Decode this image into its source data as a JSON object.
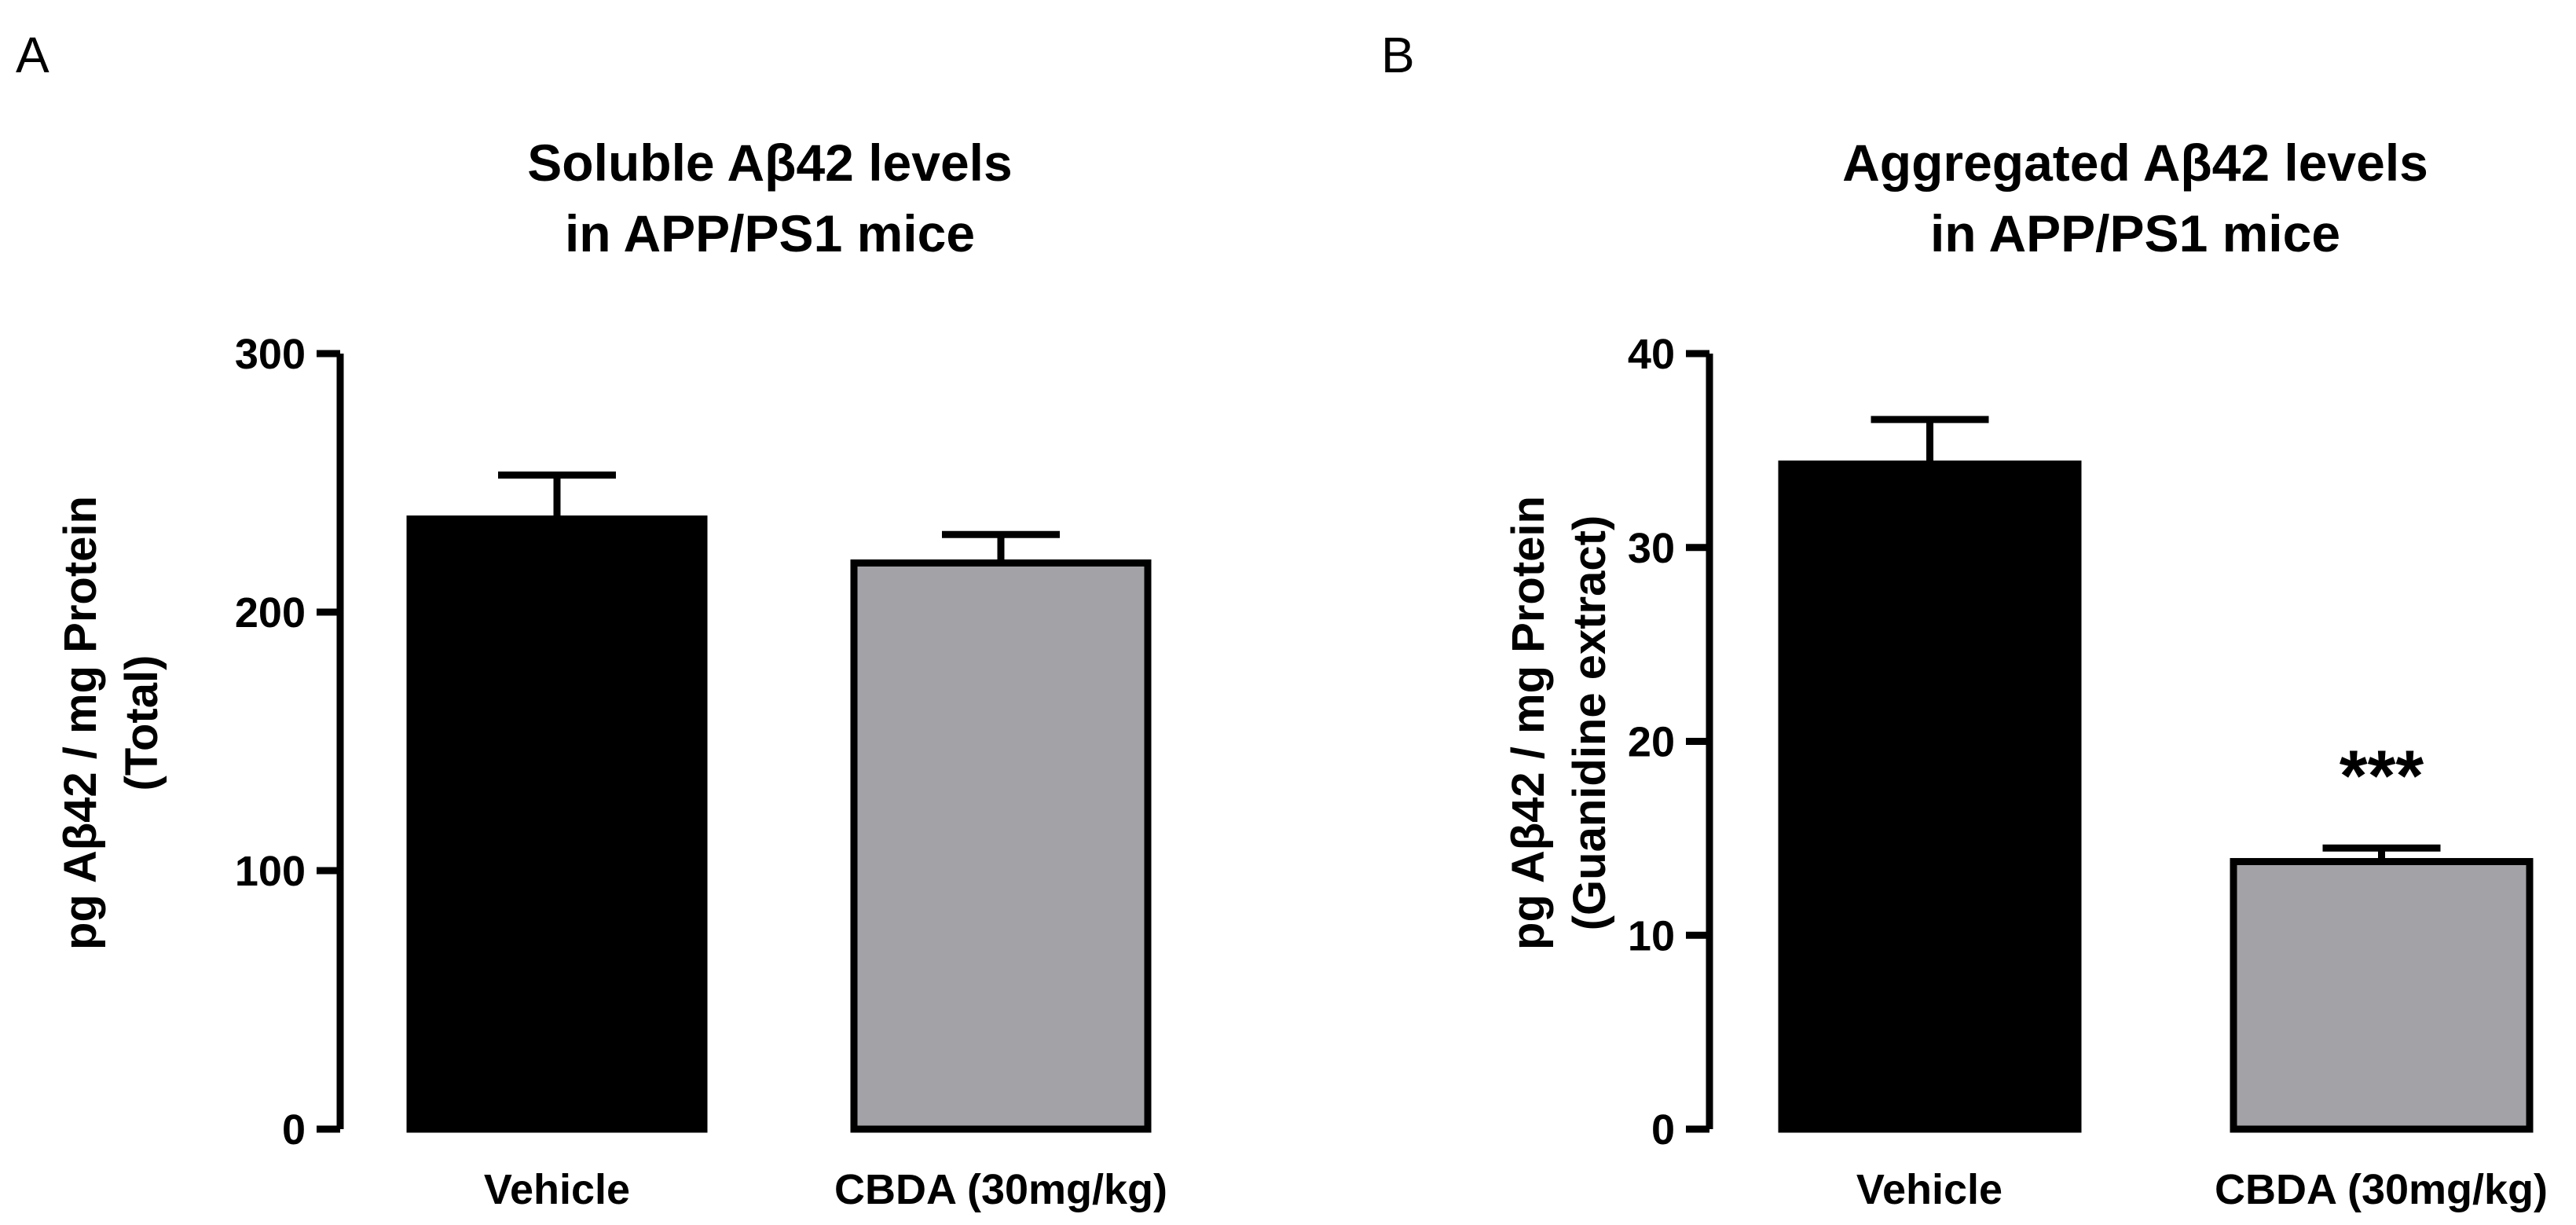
{
  "chart_data": [
    {
      "type": "bar",
      "panel_label": "A",
      "title_lines": [
        "Soluble Aβ42 levels",
        "in APP/PS1 mice"
      ],
      "ylabel_lines": [
        "pg Aβ42 / mg Protein",
        "(Total)"
      ],
      "ylim": [
        0,
        300
      ],
      "yticks": [
        0,
        100,
        200,
        300
      ],
      "ytick_labels": [
        "0",
        "100",
        "200",
        "300"
      ],
      "categories": [
        "Vehicle",
        "CBDA (30mg/kg)"
      ],
      "values": [
        236,
        219
      ],
      "error": [
        17,
        11
      ],
      "colors": [
        "#000000",
        "#a3a3a7"
      ],
      "annotations": [
        "",
        ""
      ]
    },
    {
      "type": "bar",
      "panel_label": "B",
      "title_lines": [
        "Aggregated Aβ42 levels",
        "in APP/PS1 mice"
      ],
      "ylabel_lines": [
        "pg Aβ42 / mg Protein",
        "(Guanidine extract)"
      ],
      "ylim": [
        0,
        40
      ],
      "yticks": [
        0,
        10,
        20,
        30,
        40
      ],
      "ytick_labels": [
        "0",
        "10",
        "20",
        "30",
        "40"
      ],
      "categories": [
        "Vehicle",
        "CBDA (30mg/kg)"
      ],
      "values": [
        34.3,
        13.8
      ],
      "error": [
        2.3,
        0.7
      ],
      "colors": [
        "#000000",
        "#a3a3a7"
      ],
      "annotations": [
        "",
        "***"
      ]
    }
  ]
}
